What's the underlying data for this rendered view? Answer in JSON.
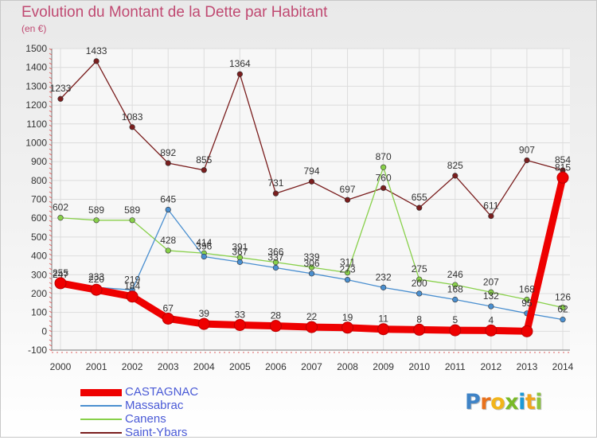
{
  "title": "Evolution du Montant de la Dette par Habitant",
  "unit": "(en €)",
  "brand": {
    "name": "Proxiti",
    "letters": [
      "P",
      "r",
      "o",
      "x",
      "i",
      "t",
      "i"
    ],
    "letter_colors": [
      "#3f83c6",
      "#e8711c",
      "#f2b51a",
      "#79b928",
      "#1d99d6",
      "#f0a51e",
      "#8cc43f"
    ]
  },
  "chart_data": {
    "type": "line",
    "title": "Evolution du Montant de la Dette par Habitant",
    "ylabel": "(en €)",
    "xlabel": "",
    "x": [
      2000,
      2001,
      2002,
      2003,
      2004,
      2005,
      2006,
      2007,
      2008,
      2009,
      2010,
      2011,
      2012,
      2013,
      2014
    ],
    "ylim": [
      -100,
      1500
    ],
    "yticks": [
      -100,
      0,
      100,
      200,
      300,
      400,
      500,
      600,
      700,
      800,
      900,
      1000,
      1100,
      1200,
      1300,
      1400,
      1500
    ],
    "grid": true,
    "legend_position": "bottom-left",
    "series": [
      {
        "name": "CASTAGNAC",
        "color": "#ee0000",
        "emphasis": true,
        "values": [
          255,
          220,
          184,
          67,
          39,
          33,
          28,
          22,
          19,
          11,
          8,
          5,
          4,
          0,
          815
        ],
        "labels": [
          "255",
          "220",
          "184",
          "67",
          "39",
          "33",
          "28",
          "22",
          "19",
          "11",
          "8",
          "5",
          "4",
          "",
          "815"
        ]
      },
      {
        "name": "Massabrac",
        "color": "#4a8fd0",
        "values": [
          247,
          233,
          219,
          645,
          396,
          367,
          337,
          306,
          273,
          232,
          200,
          168,
          132,
          95,
          62
        ],
        "labels": [
          "247",
          "233",
          "219",
          "645",
          "396",
          "367",
          "337",
          "306",
          "273",
          "232",
          "200",
          "168",
          "132",
          "95",
          "62"
        ]
      },
      {
        "name": "Canens",
        "color": "#88d04a",
        "values": [
          602,
          589,
          589,
          428,
          414,
          391,
          366,
          339,
          311,
          870,
          275,
          246,
          207,
          168,
          126
        ],
        "labels": [
          "602",
          "589",
          "589",
          "428",
          "414",
          "391",
          "366",
          "339",
          "311",
          "870",
          "275",
          "246",
          "207",
          "168",
          "126"
        ]
      },
      {
        "name": "Saint-Ybars",
        "color": "#7a1e1e",
        "values": [
          1233,
          1433,
          1083,
          892,
          855,
          1364,
          731,
          794,
          697,
          760,
          655,
          825,
          611,
          907,
          854
        ],
        "labels": [
          "1233",
          "1433",
          "1083",
          "892",
          "855",
          "1364",
          "731",
          "794",
          "697",
          "760",
          "655",
          "825",
          "611",
          "907",
          "854"
        ]
      }
    ]
  }
}
